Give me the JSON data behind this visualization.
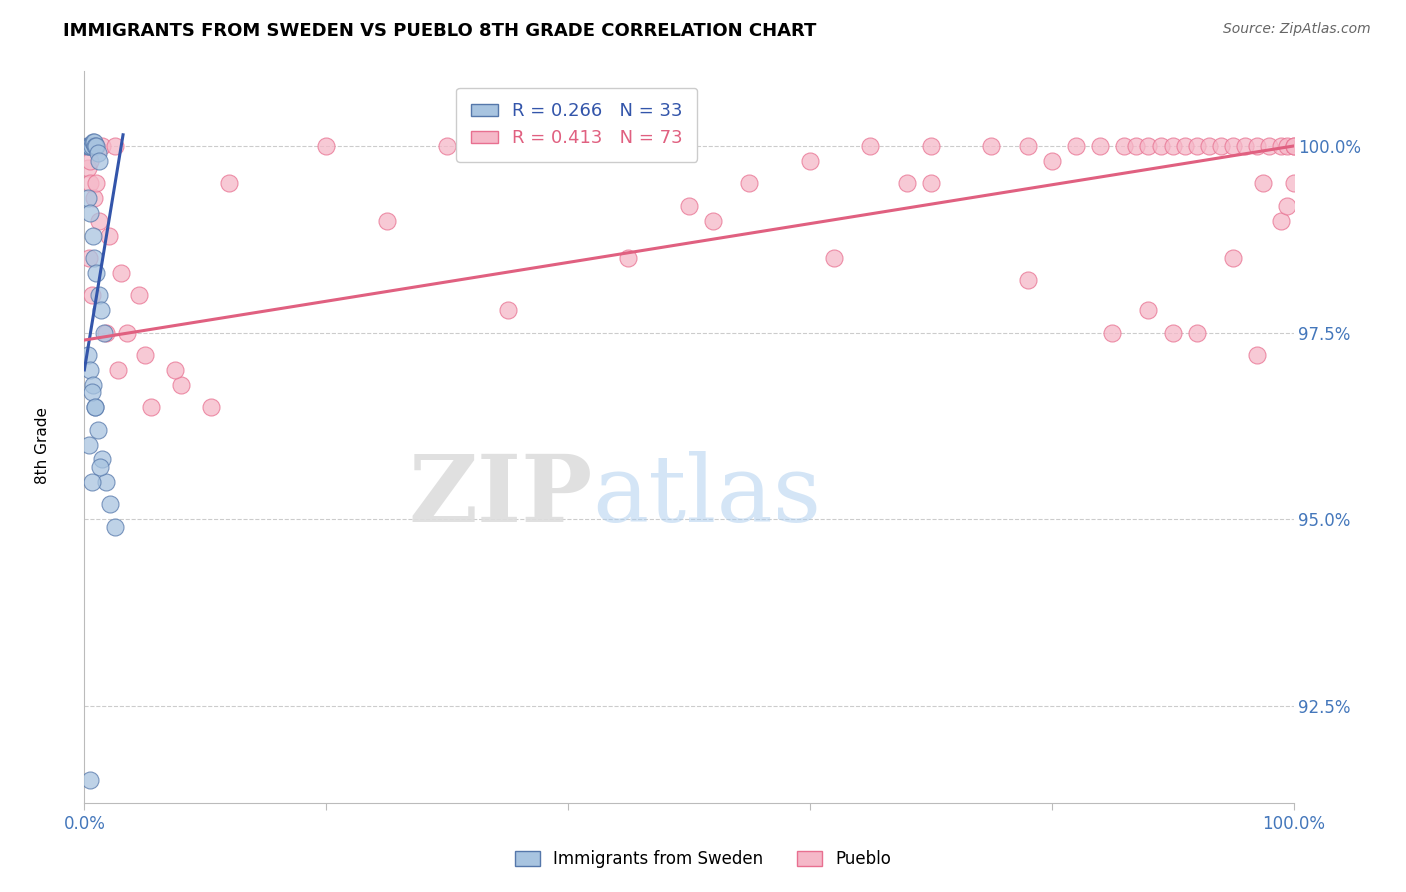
{
  "title": "IMMIGRANTS FROM SWEDEN VS PUEBLO 8TH GRADE CORRELATION CHART",
  "source_text": "Source: ZipAtlas.com",
  "ylabel": "8th Grade",
  "xlim": [
    0.0,
    100.0
  ],
  "ylim": [
    91.2,
    101.0
  ],
  "yticks": [
    92.5,
    95.0,
    97.5,
    100.0
  ],
  "ytick_labels": [
    "92.5%",
    "95.0%",
    "97.5%",
    "100.0%"
  ],
  "xticks": [
    0.0,
    20.0,
    40.0,
    60.0,
    80.0,
    100.0
  ],
  "xtick_labels": [
    "0.0%",
    "",
    "",
    "",
    "",
    "100.0%"
  ],
  "legend_R_blue": "R = 0.266",
  "legend_N_blue": "N = 33",
  "legend_R_pink": "R = 0.413",
  "legend_N_pink": "N = 73",
  "blue_color": "#A8C4E0",
  "pink_color": "#F5B8C8",
  "blue_edge_color": "#5577AA",
  "pink_edge_color": "#E87090",
  "blue_line_color": "#3355AA",
  "pink_line_color": "#E06080",
  "watermark_zip": "ZIP",
  "watermark_atlas": "atlas",
  "grid_color": "#CCCCCC",
  "background_color": "#FFFFFF",
  "blue_scatter_x": [
    0.2,
    0.4,
    0.5,
    0.6,
    0.7,
    0.8,
    0.9,
    1.0,
    1.1,
    1.2,
    0.3,
    0.5,
    0.7,
    0.8,
    1.0,
    1.2,
    1.4,
    1.6,
    0.3,
    0.5,
    0.7,
    0.9,
    1.1,
    1.5,
    1.8,
    2.1,
    2.5,
    0.6,
    0.9,
    1.3,
    0.4,
    0.6,
    0.5
  ],
  "blue_scatter_y": [
    100.0,
    100.0,
    100.0,
    100.0,
    100.05,
    100.05,
    100.0,
    100.0,
    99.9,
    99.8,
    99.3,
    99.1,
    98.8,
    98.5,
    98.3,
    98.0,
    97.8,
    97.5,
    97.2,
    97.0,
    96.8,
    96.5,
    96.2,
    95.8,
    95.5,
    95.2,
    94.9,
    96.7,
    96.5,
    95.7,
    96.0,
    95.5,
    91.5
  ],
  "pink_scatter_x": [
    0.3,
    0.5,
    0.8,
    1.2,
    2.0,
    3.0,
    4.5,
    1.8,
    2.8,
    5.5,
    8.0,
    10.5,
    0.4,
    0.7,
    1.0,
    1.5,
    2.5,
    0.5,
    1.0,
    0.4,
    0.6,
    3.5,
    5.0,
    7.5,
    12.0,
    20.0,
    30.0,
    40.0,
    50.0,
    55.0,
    60.0,
    65.0,
    70.0,
    75.0,
    78.0,
    80.0,
    82.0,
    84.0,
    86.0,
    87.0,
    88.0,
    89.0,
    90.0,
    91.0,
    92.0,
    93.0,
    94.0,
    95.0,
    96.0,
    97.0,
    97.5,
    98.0,
    99.0,
    99.5,
    100.0,
    99.0,
    62.0,
    68.0,
    25.0,
    35.0,
    45.0,
    52.0,
    70.0,
    78.0,
    85.0,
    88.0,
    90.0,
    92.0,
    95.0,
    97.0,
    99.5,
    100.0,
    100.0
  ],
  "pink_scatter_y": [
    99.7,
    99.5,
    99.3,
    99.0,
    98.8,
    98.3,
    98.0,
    97.5,
    97.0,
    96.5,
    96.8,
    96.5,
    100.0,
    100.0,
    100.0,
    100.0,
    100.0,
    99.8,
    99.5,
    98.5,
    98.0,
    97.5,
    97.2,
    97.0,
    99.5,
    100.0,
    100.0,
    100.0,
    99.2,
    99.5,
    99.8,
    100.0,
    100.0,
    100.0,
    100.0,
    99.8,
    100.0,
    100.0,
    100.0,
    100.0,
    100.0,
    100.0,
    100.0,
    100.0,
    100.0,
    100.0,
    100.0,
    100.0,
    100.0,
    100.0,
    99.5,
    100.0,
    100.0,
    100.0,
    100.0,
    99.0,
    98.5,
    99.5,
    99.0,
    97.8,
    98.5,
    99.0,
    99.5,
    98.2,
    97.5,
    97.8,
    97.5,
    97.5,
    98.5,
    97.2,
    99.2,
    100.0,
    99.5
  ],
  "blue_line_x": [
    0.0,
    3.2
  ],
  "blue_line_y": [
    97.0,
    100.15
  ],
  "pink_line_x": [
    0.0,
    100.0
  ],
  "pink_line_y": [
    97.4,
    100.0
  ]
}
